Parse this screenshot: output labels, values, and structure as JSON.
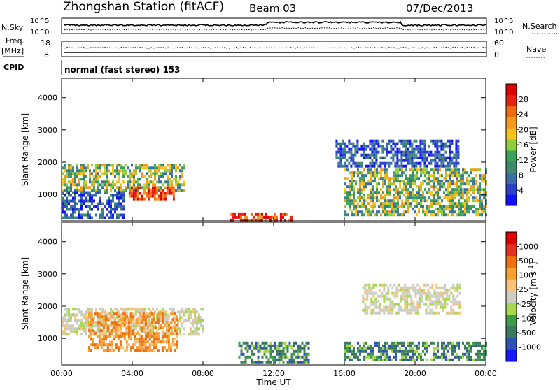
{
  "header": {
    "title": "Zhongshan Station (fitACF)",
    "beam": "Beam 03",
    "date": "07/Dec/2013"
  },
  "mini_panels": {
    "nsky_label": "N.Sky",
    "nsearch_label": "N.Search",
    "nsky_ticks": [
      "10^5",
      "10^0"
    ],
    "nsky_right_ticks": [
      "10^5",
      "10^0"
    ],
    "freq_label_line1": "Freq.",
    "freq_label_line2": "[MHz]",
    "freq_ticks": [
      "18",
      "8"
    ],
    "nave_label": "Nave",
    "nave_ticks": [
      "60",
      "0"
    ],
    "cpid_label": "CPID",
    "cpid_text": "normal (fast stereo) 153"
  },
  "chart_data": [
    {
      "type": "heatmap",
      "panel": "power",
      "ylabel": "Slant Range [km]",
      "yticks": [
        1000,
        2000,
        3000,
        4000
      ],
      "ylim": [
        180,
        4600
      ],
      "xlim_hours": [
        0,
        24
      ],
      "colorbar": {
        "label": "Power [dB]",
        "ticks": [
          "4",
          "8",
          "12",
          "16",
          "20",
          "24",
          "28"
        ],
        "colors": [
          "#1010ff",
          "#2a40c8",
          "#3a6ea8",
          "#3d8a6a",
          "#3aa35a",
          "#8fcf3c",
          "#f6c21c",
          "#f39a1a",
          "#f06a10",
          "#e82010",
          "#e00000"
        ]
      },
      "regions": [
        {
          "t0": 0.0,
          "t1": 7.0,
          "r0": 1150,
          "r1": 1950,
          "level": "mid"
        },
        {
          "t0": 3.8,
          "t1": 6.3,
          "r0": 850,
          "r1": 1250,
          "level": "high"
        },
        {
          "t0": 0.0,
          "t1": 3.5,
          "r0": 300,
          "r1": 1100,
          "level": "low"
        },
        {
          "t0": 9.5,
          "t1": 13.0,
          "r0": 220,
          "r1": 420,
          "level": "high"
        },
        {
          "t0": 15.5,
          "t1": 22.5,
          "r0": 1900,
          "r1": 2700,
          "level": "low"
        },
        {
          "t0": 16.0,
          "t1": 24.0,
          "r0": 400,
          "r1": 1800,
          "level": "mid"
        }
      ]
    },
    {
      "type": "heatmap",
      "panel": "velocity",
      "ylabel": "Slant Range [km]",
      "yticks": [
        1000,
        2000,
        3000,
        4000
      ],
      "ylim": [
        180,
        4600
      ],
      "xlim_hours": [
        0,
        24
      ],
      "xticks": [
        "00:00",
        "04:00",
        "08:00",
        "12:00",
        "16:00",
        "20:00",
        "00:00"
      ],
      "xlabel": "Time UT",
      "colorbar": {
        "label": "Velocity [m s^-1]",
        "ticks": [
          "1000",
          "500",
          "100",
          "25",
          "-25",
          "-100",
          "-500",
          "-1000"
        ],
        "colors": [
          "#1818ff",
          "#2f52b8",
          "#3a7a5c",
          "#3f9a4c",
          "#a7d84c",
          "#cdcdc4",
          "#f8c27a",
          "#f7a030",
          "#f07010",
          "#e83020",
          "#e00000"
        ]
      },
      "regions": [
        {
          "t0": 0.0,
          "t1": 8.0,
          "r0": 1150,
          "r1": 1950,
          "level": "grey"
        },
        {
          "t0": 1.5,
          "t1": 6.5,
          "r0": 600,
          "r1": 1800,
          "level": "orange"
        },
        {
          "t0": 10.0,
          "t1": 14.0,
          "r0": 220,
          "r1": 900,
          "level": "green"
        },
        {
          "t0": 16.0,
          "t1": 24.0,
          "r0": 300,
          "r1": 900,
          "level": "green"
        },
        {
          "t0": 17.0,
          "t1": 22.5,
          "r0": 1800,
          "r1": 2700,
          "level": "grey"
        }
      ]
    }
  ]
}
